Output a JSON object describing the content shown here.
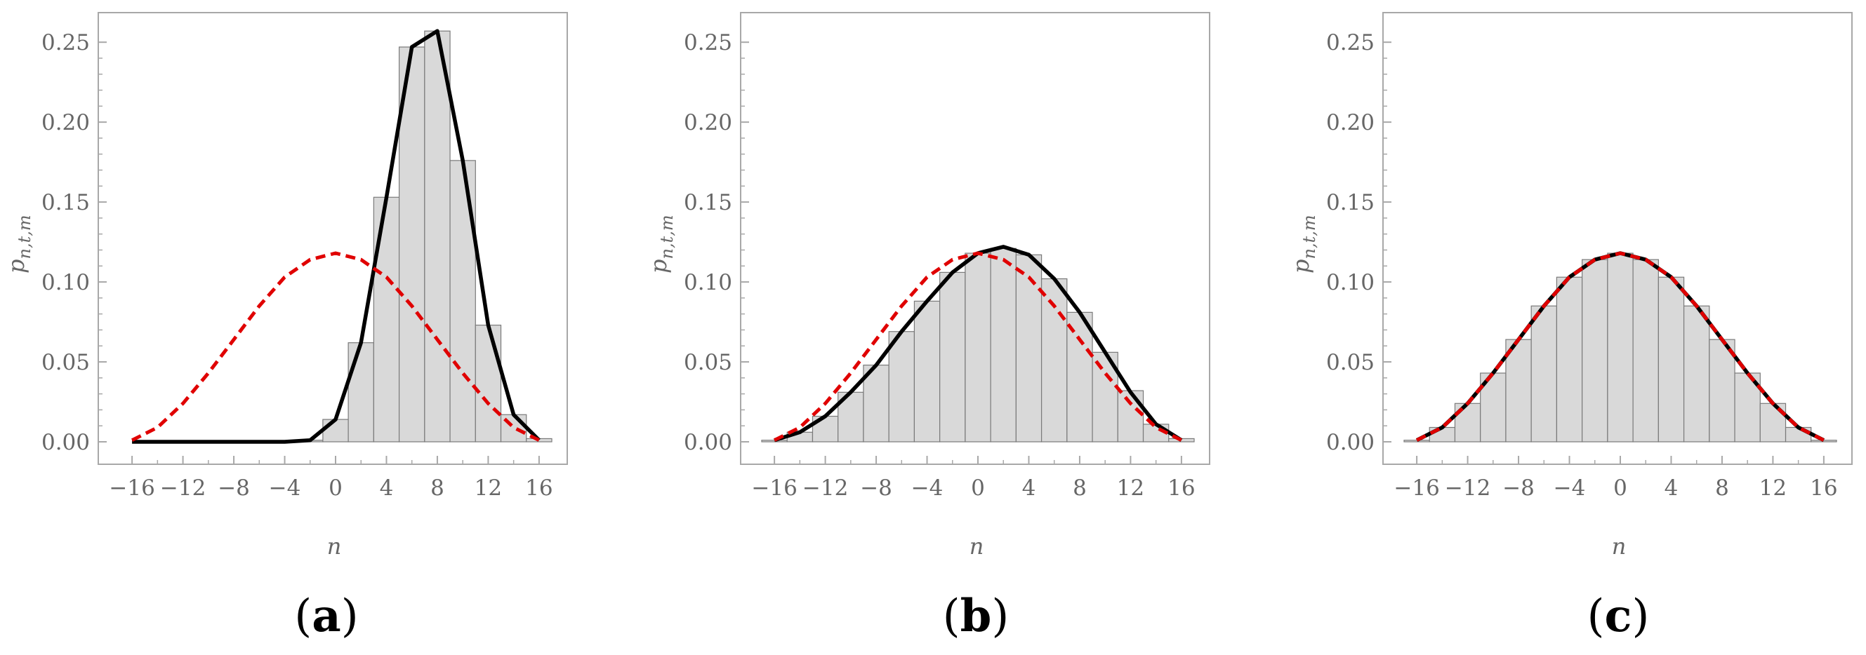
{
  "chart_data": [
    {
      "type": "bar+line",
      "panel_label": "a",
      "xlabel": "n",
      "ylabel": "p_{n,t,m}",
      "xlim": [
        -17,
        17
      ],
      "ylim": [
        0,
        0.265
      ],
      "xticks": [
        "−16",
        "−12",
        "−8",
        "−4",
        "0",
        "4",
        "8",
        "12",
        "16"
      ],
      "yticks": [
        "0.00",
        "0.05",
        "0.10",
        "0.15",
        "0.20",
        "0.25"
      ],
      "histogram": {
        "bin_width": 2,
        "bin_centers": [
          -16,
          -14,
          -12,
          -10,
          -8,
          -6,
          -4,
          -2,
          0,
          2,
          4,
          6,
          8,
          10,
          12,
          14,
          16
        ],
        "values": [
          0,
          0,
          0,
          0,
          0,
          0,
          0,
          0.001,
          0.014,
          0.062,
          0.153,
          0.247,
          0.257,
          0.176,
          0.073,
          0.017,
          0.002
        ]
      },
      "series": [
        {
          "style": "solid-black",
          "x": [
            -16,
            -14,
            -12,
            -10,
            -8,
            -6,
            -4,
            -2,
            0,
            2,
            4,
            6,
            8,
            10,
            12,
            14,
            16
          ],
          "y": [
            0,
            0,
            0,
            0,
            0,
            0,
            0,
            0.001,
            0.014,
            0.062,
            0.153,
            0.247,
            0.257,
            0.176,
            0.073,
            0.017,
            0.001
          ]
        },
        {
          "style": "dashed-red",
          "x": [
            -16,
            -14,
            -12,
            -10,
            -8,
            -6,
            -4,
            -2,
            0,
            2,
            4,
            6,
            8,
            10,
            12,
            14,
            16
          ],
          "y": [
            0.001,
            0.009,
            0.024,
            0.043,
            0.064,
            0.085,
            0.103,
            0.114,
            0.118,
            0.114,
            0.103,
            0.085,
            0.064,
            0.043,
            0.024,
            0.009,
            0.001
          ]
        }
      ]
    },
    {
      "type": "bar+line",
      "panel_label": "b",
      "xlabel": "n",
      "ylabel": "p_{n,t,m}",
      "xlim": [
        -17,
        17
      ],
      "ylim": [
        0,
        0.265
      ],
      "xticks": [
        "−16",
        "−12",
        "−8",
        "−4",
        "0",
        "4",
        "8",
        "12",
        "16"
      ],
      "yticks": [
        "0.00",
        "0.05",
        "0.10",
        "0.15",
        "0.20",
        "0.25"
      ],
      "histogram": {
        "bin_width": 2,
        "bin_centers": [
          -16,
          -14,
          -12,
          -10,
          -8,
          -6,
          -4,
          -2,
          0,
          2,
          4,
          6,
          8,
          10,
          12,
          14,
          16
        ],
        "values": [
          0.001,
          0.006,
          0.016,
          0.031,
          0.048,
          0.069,
          0.088,
          0.106,
          0.118,
          0.121,
          0.117,
          0.102,
          0.081,
          0.056,
          0.032,
          0.011,
          0.002
        ]
      },
      "series": [
        {
          "style": "solid-black",
          "x": [
            -16,
            -14,
            -12,
            -10,
            -8,
            -6,
            -4,
            -2,
            0,
            2,
            4,
            6,
            8,
            10,
            12,
            14,
            16
          ],
          "y": [
            0.001,
            0.006,
            0.016,
            0.031,
            0.048,
            0.069,
            0.088,
            0.106,
            0.118,
            0.122,
            0.117,
            0.102,
            0.081,
            0.056,
            0.031,
            0.011,
            0.001
          ]
        },
        {
          "style": "dashed-red",
          "x": [
            -16,
            -14,
            -12,
            -10,
            -8,
            -6,
            -4,
            -2,
            0,
            2,
            4,
            6,
            8,
            10,
            12,
            14,
            16
          ],
          "y": [
            0.001,
            0.009,
            0.024,
            0.043,
            0.064,
            0.085,
            0.103,
            0.114,
            0.118,
            0.114,
            0.103,
            0.085,
            0.064,
            0.043,
            0.024,
            0.009,
            0.001
          ]
        }
      ]
    },
    {
      "type": "bar+line",
      "panel_label": "c",
      "xlabel": "n",
      "ylabel": "p_{n,t,m}",
      "xlim": [
        -17,
        17
      ],
      "ylim": [
        0,
        0.265
      ],
      "xticks": [
        "−16",
        "−12",
        "−8",
        "−4",
        "0",
        "4",
        "8",
        "12",
        "16"
      ],
      "yticks": [
        "0.00",
        "0.05",
        "0.10",
        "0.15",
        "0.20",
        "0.25"
      ],
      "histogram": {
        "bin_width": 2,
        "bin_centers": [
          -16,
          -14,
          -12,
          -10,
          -8,
          -6,
          -4,
          -2,
          0,
          2,
          4,
          6,
          8,
          10,
          12,
          14,
          16
        ],
        "values": [
          0.001,
          0.009,
          0.024,
          0.043,
          0.064,
          0.085,
          0.103,
          0.114,
          0.118,
          0.114,
          0.103,
          0.085,
          0.064,
          0.043,
          0.024,
          0.009,
          0.001
        ]
      },
      "series": [
        {
          "style": "solid-black",
          "x": [
            -16,
            -14,
            -12,
            -10,
            -8,
            -6,
            -4,
            -2,
            0,
            2,
            4,
            6,
            8,
            10,
            12,
            14,
            16
          ],
          "y": [
            0.001,
            0.009,
            0.024,
            0.043,
            0.064,
            0.085,
            0.103,
            0.114,
            0.118,
            0.114,
            0.103,
            0.085,
            0.064,
            0.043,
            0.024,
            0.009,
            0.001
          ]
        },
        {
          "style": "dashed-red",
          "x": [
            -16,
            -14,
            -12,
            -10,
            -8,
            -6,
            -4,
            -2,
            0,
            2,
            4,
            6,
            8,
            10,
            12,
            14,
            16
          ],
          "y": [
            0.001,
            0.009,
            0.024,
            0.043,
            0.064,
            0.085,
            0.103,
            0.114,
            0.118,
            0.114,
            0.103,
            0.085,
            0.064,
            0.043,
            0.024,
            0.009,
            0.001
          ]
        }
      ]
    }
  ],
  "colors": {
    "bar_fill": "#d9d9d9",
    "bar_stroke": "#7a7a7a",
    "frame": "#a8a8a8",
    "solid_line": "#000000",
    "dashed_line": "#e00000",
    "tick_text": "#666666"
  }
}
